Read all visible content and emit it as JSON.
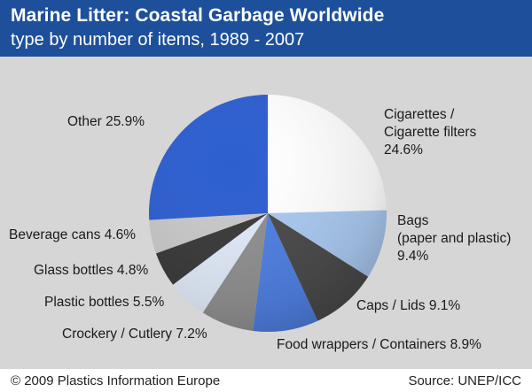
{
  "header": {
    "title": "Marine Litter: Coastal Garbage Worldwide",
    "subtitle": "type by number of items, 1989 - 2007"
  },
  "footer": {
    "copyright": "© 2009 Plastics Information Europe",
    "source": "Source: UNEP/ICC"
  },
  "colors": {
    "header_bg": "#1d4f9b",
    "plot_bg": "#d6d6d6"
  },
  "chart_data": {
    "type": "pie",
    "start_angle_deg": 0,
    "direction": "clockwise",
    "slices": [
      {
        "label_lines": [
          "Cigarettes /",
          "Cigarette filters",
          "24.6%"
        ],
        "value": 24.6,
        "color": "#ffffff"
      },
      {
        "label_lines": [
          "Bags",
          "(paper and plastic)",
          "9.4%"
        ],
        "value": 9.4,
        "color": "#a9c8ef"
      },
      {
        "label_lines": [
          "Caps / Lids 9.1%"
        ],
        "value": 9.1,
        "color": "#4a4a4a"
      },
      {
        "label_lines": [
          "Food wrappers / Containers 8.9%"
        ],
        "value": 8.9,
        "color": "#4f7fe0"
      },
      {
        "label_lines": [
          "Crockery / Cutlery 7.2%"
        ],
        "value": 7.2,
        "color": "#8f8f8f"
      },
      {
        "label_lines": [
          "Plastic bottles 5.5%"
        ],
        "value": 5.5,
        "color": "#dfe8f7"
      },
      {
        "label_lines": [
          "Glass bottles 4.8%"
        ],
        "value": 4.8,
        "color": "#3a3a3a"
      },
      {
        "label_lines": [
          "Beverage cans 4.6%"
        ],
        "value": 4.6,
        "color": "#c8c8c8"
      },
      {
        "label_lines": [
          "Other 25.9%"
        ],
        "value": 25.9,
        "color": "#2e5fd0"
      }
    ]
  }
}
